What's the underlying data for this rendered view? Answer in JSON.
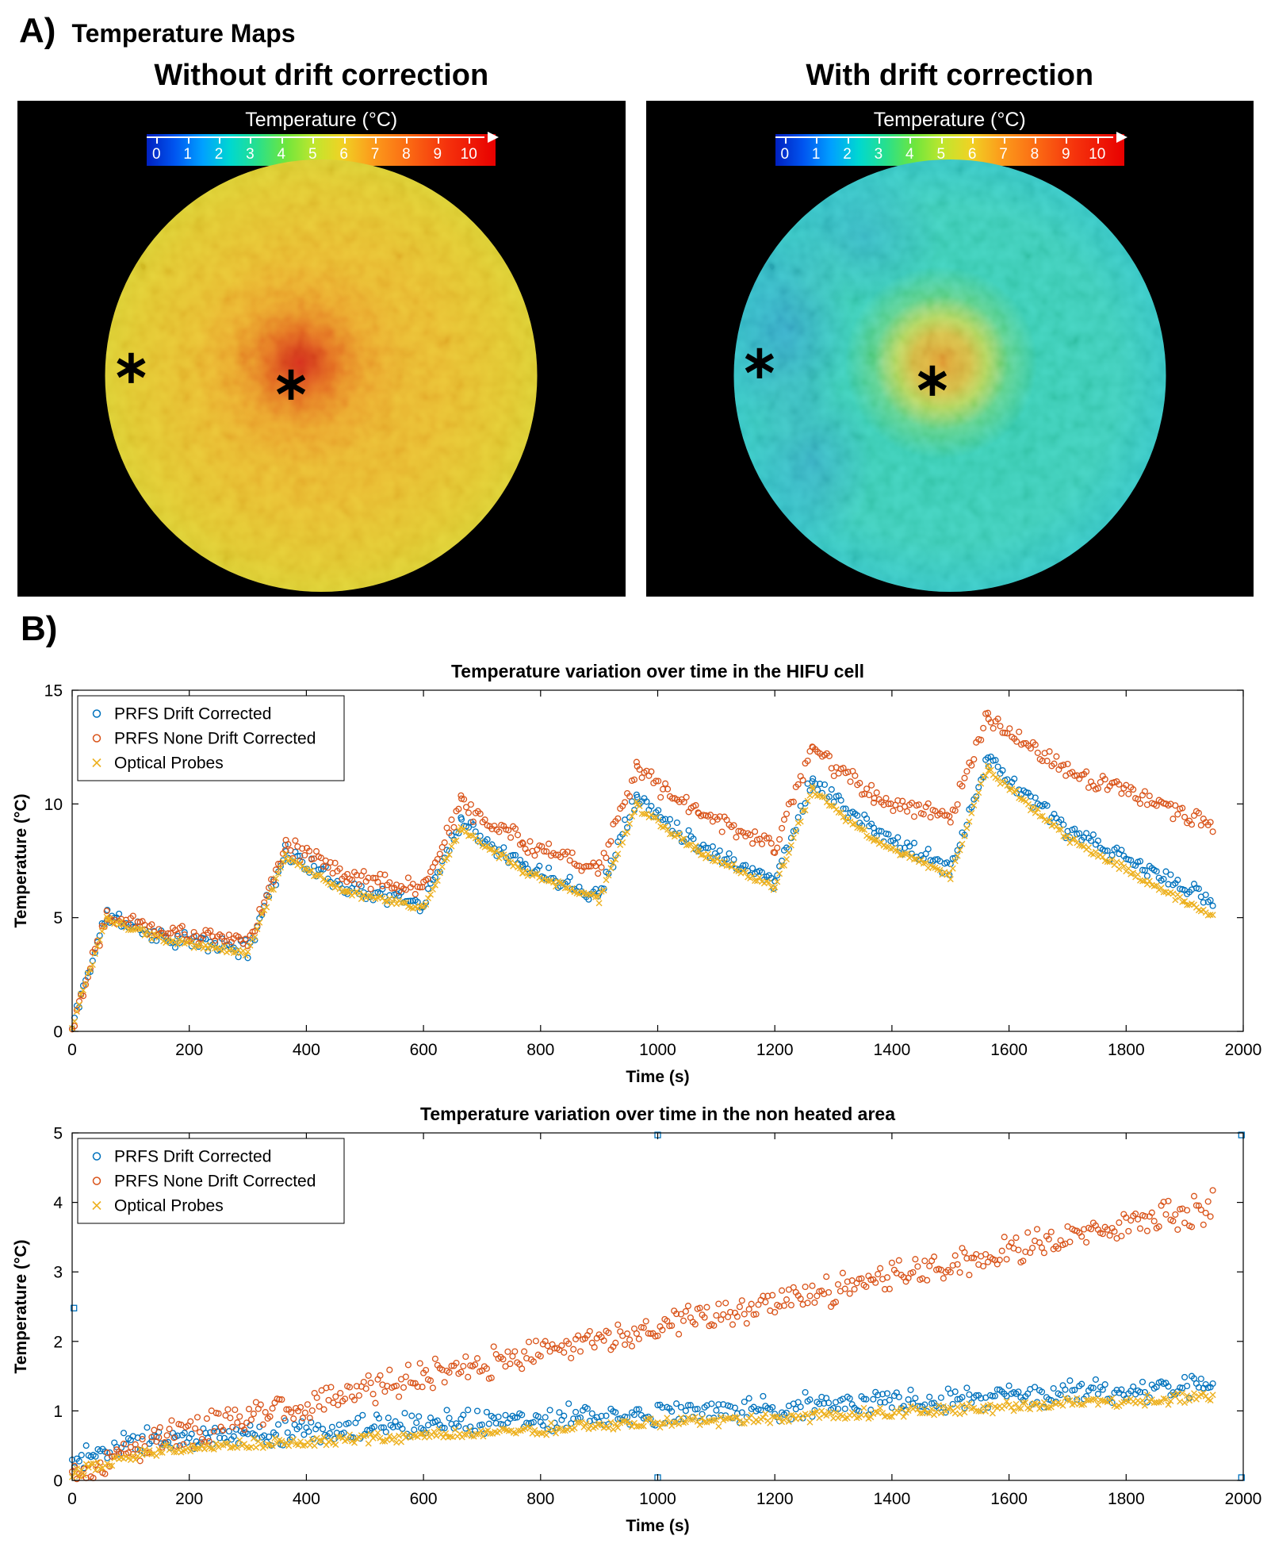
{
  "section_a": {
    "label": "A)",
    "title": "Temperature Maps",
    "asterisk_glyph": "∗",
    "maps": [
      {
        "title": "Without drift correction",
        "colorbar_title": "Temperature  (°C)",
        "ticks": [
          "0",
          "1",
          "2",
          "3",
          "4",
          "5",
          "6",
          "7",
          "8",
          "9",
          "10"
        ],
        "markers": [
          {
            "x": 6,
            "y": 48
          },
          {
            "x": 43,
            "y": 52
          }
        ]
      },
      {
        "title": "With drift correction",
        "colorbar_title": "Temperature  (°C)",
        "ticks": [
          "0",
          "1",
          "2",
          "3",
          "4",
          "5",
          "6",
          "7",
          "8",
          "9",
          "10"
        ],
        "markers": [
          {
            "x": 6,
            "y": 47
          },
          {
            "x": 46,
            "y": 51
          }
        ]
      }
    ]
  },
  "section_b": {
    "label": "B)"
  },
  "chart_data": [
    {
      "type": "scatter",
      "title": "Temperature variation over time in the HIFU cell",
      "xlabel": "Time (s)",
      "ylabel": "Temperature  (°C)",
      "xlim": [
        0,
        2000
      ],
      "ylim": [
        0,
        15
      ],
      "xticks": [
        0,
        200,
        400,
        600,
        800,
        1000,
        1200,
        1400,
        1600,
        1800,
        2000
      ],
      "yticks": [
        0,
        5,
        10,
        15
      ],
      "grid": false,
      "legend_position": "top-left",
      "sample_dt": 4,
      "series": [
        {
          "name": "PRFS Drift Corrected",
          "color": "#0072BD",
          "marker": "circle",
          "noise": 0.3,
          "seed": 11,
          "segments": [
            [
              0,
              15,
              0.1,
              1.6
            ],
            [
              15,
              60,
              1.6,
              5.2
            ],
            [
              60,
              160,
              5.05,
              4.1
            ],
            [
              160,
              300,
              4.1,
              3.6
            ],
            [
              300,
              365,
              3.6,
              8.0
            ],
            [
              365,
              470,
              7.85,
              6.3
            ],
            [
              470,
              600,
              6.3,
              5.6
            ],
            [
              600,
              665,
              5.6,
              9.4
            ],
            [
              665,
              770,
              9.25,
              7.3
            ],
            [
              770,
              900,
              7.3,
              6.0
            ],
            [
              900,
              965,
              6.0,
              10.4
            ],
            [
              965,
              1070,
              10.25,
              8.2
            ],
            [
              1070,
              1200,
              8.2,
              6.6
            ],
            [
              1200,
              1265,
              6.6,
              11.2
            ],
            [
              1265,
              1370,
              11.0,
              8.8
            ],
            [
              1370,
              1500,
              8.8,
              7.1
            ],
            [
              1500,
              1565,
              7.1,
              12.2
            ],
            [
              1565,
              1700,
              11.9,
              8.8
            ],
            [
              1700,
              1950,
              8.8,
              5.7
            ]
          ]
        },
        {
          "name": "PRFS None Drift Corrected",
          "color": "#D95319",
          "marker": "circle",
          "noise": 0.32,
          "seed": 22,
          "segments": [
            [
              0,
              15,
              0.1,
              1.6
            ],
            [
              15,
              60,
              1.6,
              5.3
            ],
            [
              60,
              160,
              5.2,
              4.4
            ],
            [
              160,
              300,
              4.4,
              3.9
            ],
            [
              300,
              365,
              3.9,
              8.3
            ],
            [
              365,
              470,
              8.2,
              6.9
            ],
            [
              470,
              600,
              6.9,
              6.2
            ],
            [
              600,
              665,
              6.2,
              10.1
            ],
            [
              665,
              770,
              10.0,
              8.3
            ],
            [
              770,
              900,
              8.3,
              7.2
            ],
            [
              900,
              965,
              7.2,
              11.6
            ],
            [
              965,
              1070,
              11.45,
              9.6
            ],
            [
              1070,
              1200,
              9.6,
              8.1
            ],
            [
              1200,
              1265,
              8.1,
              12.5
            ],
            [
              1265,
              1370,
              12.35,
              10.4
            ],
            [
              1370,
              1500,
              10.4,
              9.3
            ],
            [
              1500,
              1565,
              9.3,
              13.9
            ],
            [
              1565,
              1700,
              13.6,
              11.5
            ],
            [
              1700,
              1950,
              11.5,
              9.0
            ]
          ]
        },
        {
          "name": "Optical Probes",
          "color": "#EDB120",
          "marker": "x",
          "noise": 0.12,
          "seed": 33,
          "segments": [
            [
              0,
              15,
              0.1,
              1.5
            ],
            [
              15,
              60,
              1.5,
              5.0
            ],
            [
              60,
              160,
              4.9,
              4.0
            ],
            [
              160,
              300,
              4.0,
              3.45
            ],
            [
              300,
              365,
              3.45,
              7.8
            ],
            [
              365,
              470,
              7.65,
              6.1
            ],
            [
              470,
              600,
              6.1,
              5.4
            ],
            [
              600,
              665,
              5.4,
              9.05
            ],
            [
              665,
              770,
              8.9,
              7.0
            ],
            [
              770,
              900,
              7.0,
              5.8
            ],
            [
              900,
              965,
              5.8,
              10.0
            ],
            [
              965,
              1070,
              9.85,
              7.9
            ],
            [
              1070,
              1200,
              7.9,
              6.35
            ],
            [
              1200,
              1265,
              6.35,
              10.7
            ],
            [
              1265,
              1370,
              10.55,
              8.4
            ],
            [
              1370,
              1500,
              8.4,
              6.8
            ],
            [
              1500,
              1565,
              6.8,
              11.8
            ],
            [
              1565,
              1700,
              11.5,
              8.5
            ],
            [
              1700,
              1950,
              8.5,
              5.0
            ]
          ]
        }
      ]
    },
    {
      "type": "scatter",
      "title": "Temperature variation over time in the non heated area",
      "xlabel": "Time (s)",
      "ylabel": "Temperature  (°C)",
      "xlim": [
        0,
        2000
      ],
      "ylim": [
        0,
        5
      ],
      "xticks": [
        0,
        200,
        400,
        600,
        800,
        1000,
        1200,
        1400,
        1600,
        1800,
        2000
      ],
      "yticks": [
        0,
        1,
        2,
        3,
        4,
        5
      ],
      "grid": false,
      "legend_position": "top-left",
      "sample_dt": 4,
      "series": [
        {
          "name": "PRFS Drift Corrected",
          "color": "#0072BD",
          "marker": "circle",
          "noise": 0.14,
          "seed": 44,
          "segments": [
            [
              0,
              100,
              0.25,
              0.55
            ],
            [
              100,
              600,
              0.55,
              0.8
            ],
            [
              600,
              1200,
              0.8,
              1.05
            ],
            [
              1200,
              1950,
              1.05,
              1.35
            ]
          ]
        },
        {
          "name": "PRFS None Drift Corrected",
          "color": "#D95319",
          "marker": "circle",
          "noise": 0.17,
          "seed": 55,
          "segments": [
            [
              0,
              150,
              0.08,
              0.62
            ],
            [
              150,
              600,
              0.62,
              1.5
            ],
            [
              600,
              1200,
              1.5,
              2.55
            ],
            [
              1200,
              1600,
              2.55,
              3.3
            ],
            [
              1600,
              1950,
              3.3,
              3.95
            ]
          ]
        },
        {
          "name": "Optical Probes",
          "color": "#EDB120",
          "marker": "x",
          "noise": 0.06,
          "seed": 66,
          "segments": [
            [
              0,
              150,
              0.12,
              0.45
            ],
            [
              150,
              900,
              0.45,
              0.78
            ],
            [
              900,
              1950,
              0.78,
              1.2
            ]
          ]
        }
      ],
      "outliers": {
        "color": "#0072BD",
        "marker": "square",
        "points": [
          [
            3,
            2.48
          ],
          [
            1000,
            4.97
          ],
          [
            1997,
            4.97
          ],
          [
            1000,
            0.04
          ],
          [
            1997,
            0.04
          ]
        ]
      }
    }
  ]
}
